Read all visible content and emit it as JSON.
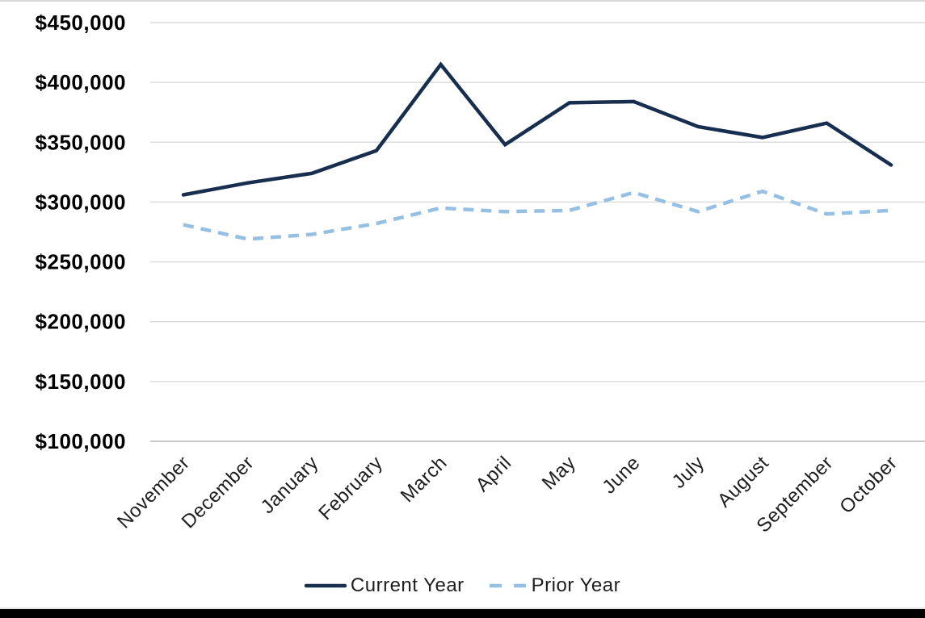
{
  "chart_data": {
    "type": "line",
    "title": "",
    "xlabel": "",
    "ylabel": "",
    "categories": [
      "November",
      "December",
      "January",
      "February",
      "March",
      "April",
      "May",
      "June",
      "July",
      "August",
      "September",
      "October"
    ],
    "series": [
      {
        "name": "Current Year",
        "style": "solid",
        "color": "#172e4f",
        "values": [
          306000,
          316000,
          324000,
          343000,
          415000,
          348000,
          383000,
          384000,
          363000,
          354000,
          366000,
          331000
        ]
      },
      {
        "name": "Prior Year",
        "style": "dashed",
        "color": "#95bfe3",
        "values": [
          281000,
          269000,
          273000,
          282000,
          295000,
          292000,
          293000,
          308000,
          292000,
          309000,
          290000,
          293000
        ]
      }
    ],
    "ylim": [
      100000,
      450000
    ],
    "y_tick_values": [
      450000,
      400000,
      350000,
      300000,
      250000,
      200000,
      150000,
      100000
    ],
    "y_tick_labels": [
      "$450,000",
      "$400,000",
      "$350,000",
      "$300,000",
      "$250,000",
      "$200,000",
      "$150,000",
      "$100,000"
    ],
    "x_tick_rotation_degrees": 45,
    "grid": "horizontal",
    "legend_position": "bottom"
  },
  "colors": {
    "background": "#ffffff",
    "gridline": "#dcdcdc",
    "axis_line": "#c9c9c9",
    "y_label": "#000000",
    "x_label": "#1e1e1e",
    "legend_text": "#1e1e1e",
    "top_border": "#d6d6d6",
    "bottom_divider": "#e2e2e2",
    "bottom_bar": "#000000"
  }
}
